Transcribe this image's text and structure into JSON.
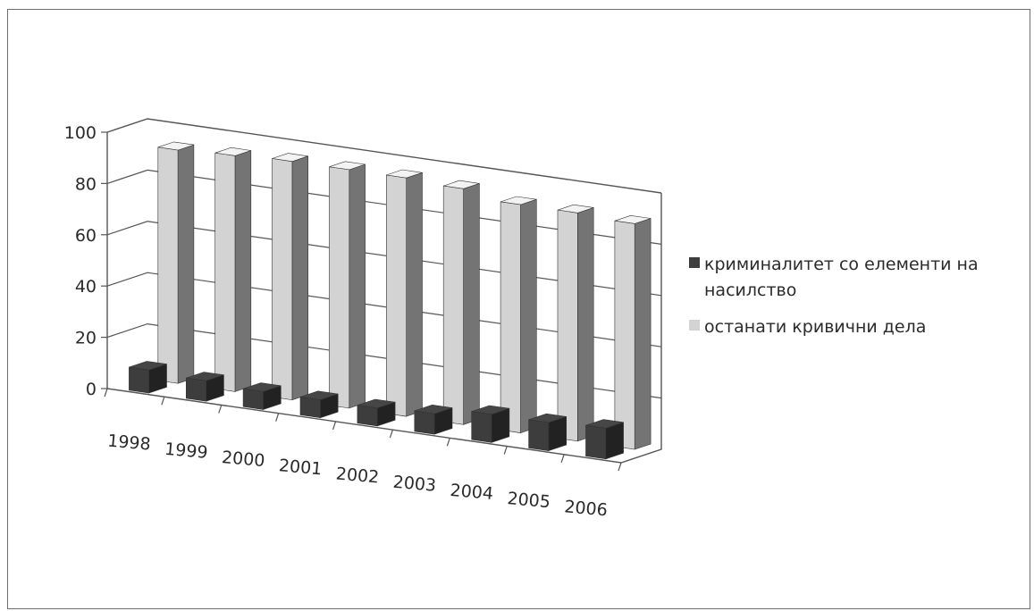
{
  "chart_data": {
    "type": "bar",
    "style": "3d-clustered-column",
    "categories": [
      "1998",
      "1999",
      "2000",
      "2001",
      "2002",
      "2003",
      "2004",
      "2005",
      "2006"
    ],
    "series": [
      {
        "name": "криминалитет со елементи на насилство",
        "color": "#3d3d3d",
        "values": [
          9,
          8,
          7,
          7,
          7,
          8,
          11,
          11,
          12
        ]
      },
      {
        "name": "останати кривични дела",
        "color": "#d3d3d3",
        "values": [
          91,
          92,
          93,
          93,
          93,
          92,
          89,
          89,
          88
        ]
      }
    ],
    "ylim": [
      0,
      100
    ],
    "yticks": [
      0,
      20,
      40,
      60,
      80,
      100
    ],
    "grid": true,
    "legend_position": "right",
    "title": "",
    "xlabel": "",
    "ylabel": ""
  }
}
